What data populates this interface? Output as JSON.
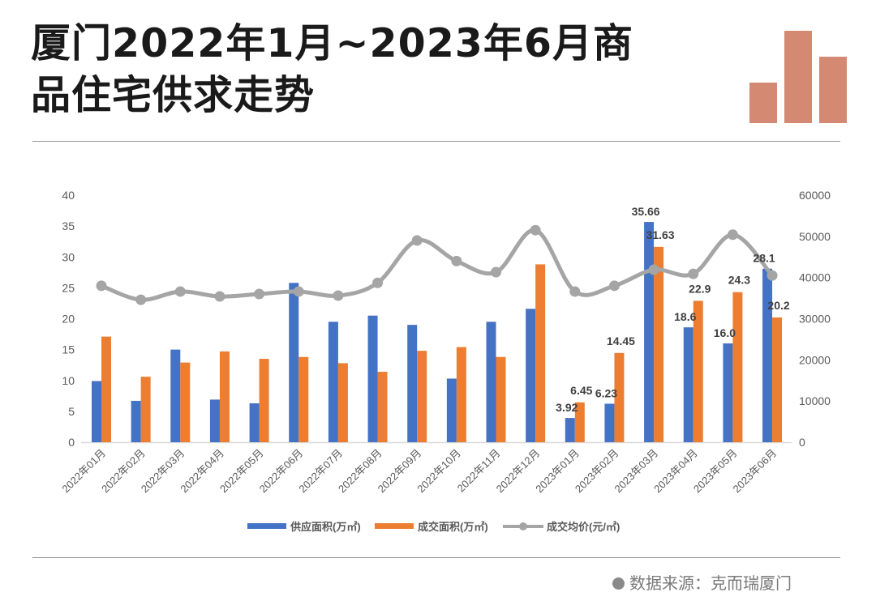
{
  "header": {
    "title_line1": "厦门2022年1月~2023年6月商",
    "title_line2": "品住宅供求走势",
    "logo_icon": "bar-chart-icon",
    "logo_color": "#d48a72"
  },
  "footer": {
    "source": "数据来源：克而瑞厦门"
  },
  "chart_data": {
    "type": "bar+line",
    "categories": [
      "2022年01月",
      "2022年02月",
      "2022年03月",
      "2022年04月",
      "2022年05月",
      "2022年06月",
      "2022年07月",
      "2022年08月",
      "2022年09月",
      "2022年10月",
      "2022年11月",
      "2022年12月",
      "2023年01月",
      "2023年02月",
      "2023年03月",
      "2023年04月",
      "2023年05月",
      "2023年06月"
    ],
    "series": [
      {
        "name": "供应面积(万㎡)",
        "type": "bar",
        "axis": "left",
        "color": "#4472c4",
        "values": [
          9.9,
          6.7,
          15.0,
          6.9,
          6.3,
          25.8,
          19.5,
          20.5,
          19.0,
          10.3,
          19.5,
          21.6,
          3.92,
          6.23,
          35.66,
          18.6,
          16.0,
          28.1
        ],
        "labels": [
          null,
          null,
          null,
          null,
          null,
          null,
          null,
          null,
          null,
          null,
          null,
          null,
          "3.92",
          "6.23",
          "35.66",
          "18.6",
          "16.0",
          "28.1"
        ]
      },
      {
        "name": "成交面积(万㎡)",
        "type": "bar",
        "axis": "left",
        "color": "#ed7d31",
        "values": [
          17.1,
          10.6,
          12.9,
          14.7,
          13.5,
          13.8,
          12.8,
          11.4,
          14.8,
          15.4,
          13.8,
          28.8,
          6.45,
          14.45,
          31.63,
          22.9,
          24.3,
          20.2
        ],
        "labels": [
          null,
          null,
          null,
          null,
          null,
          null,
          null,
          null,
          null,
          null,
          null,
          null,
          "6.45",
          "14.45",
          "31.63",
          "22.9",
          "24.3",
          "20.2"
        ]
      },
      {
        "name": "成交均价(元/㎡)",
        "type": "line",
        "axis": "right",
        "color": "#a5a5a5",
        "values": [
          38000,
          34600,
          36600,
          35400,
          36000,
          36600,
          35600,
          38700,
          49000,
          44000,
          41300,
          51500,
          36600,
          38000,
          41900,
          40900,
          50400,
          40500
        ]
      }
    ],
    "y_left": {
      "range": [
        0,
        40
      ],
      "ticks": [
        "0",
        "5",
        "10",
        "15",
        "20",
        "25",
        "30",
        "35",
        "40"
      ]
    },
    "y_right": {
      "range": [
        0,
        60000
      ],
      "ticks": [
        "0",
        "10000",
        "20000",
        "30000",
        "40000",
        "50000",
        "60000"
      ]
    },
    "legend_placement": "bottom",
    "grid": false
  }
}
